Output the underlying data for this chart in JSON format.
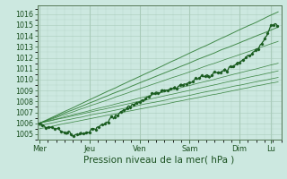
{
  "xlabel": "Pression niveau de la mer( hPa )",
  "ylim": [
    1004.5,
    1016.8
  ],
  "yticks": [
    1005,
    1006,
    1007,
    1008,
    1009,
    1010,
    1011,
    1012,
    1013,
    1014,
    1015,
    1016
  ],
  "xtick_labels": [
    "Mer",
    "Jeu",
    "Ven",
    "Sam",
    "Dim",
    "Lu"
  ],
  "xtick_positions": [
    0,
    48,
    96,
    144,
    192,
    222
  ],
  "xlim": [
    -2,
    232
  ],
  "background_color": "#cce8e0",
  "grid_color": "#aaccbb",
  "line_color": "#1a5c20",
  "ensemble_color": "#2a7a30",
  "n_time": 230,
  "figsize": [
    3.2,
    2.0
  ],
  "dpi": 100,
  "main_pts_t": [
    0,
    8,
    18,
    35,
    50,
    70,
    96,
    115,
    130,
    144,
    155,
    165,
    175,
    185,
    195,
    205,
    215,
    222
  ],
  "main_pts_v": [
    1006.0,
    1005.7,
    1005.4,
    1005.0,
    1005.3,
    1006.5,
    1008.0,
    1008.8,
    1009.3,
    1009.8,
    1010.2,
    1010.5,
    1010.8,
    1011.2,
    1011.8,
    1012.5,
    1013.5,
    1015.0
  ],
  "ensemble_endpoints": [
    1016.2,
    1014.8,
    1013.5,
    1011.5,
    1010.8,
    1010.2,
    1009.8
  ],
  "ensemble_starts": [
    1006.0,
    1006.0,
    1006.0,
    1006.0,
    1006.0,
    1005.8,
    1005.5
  ]
}
